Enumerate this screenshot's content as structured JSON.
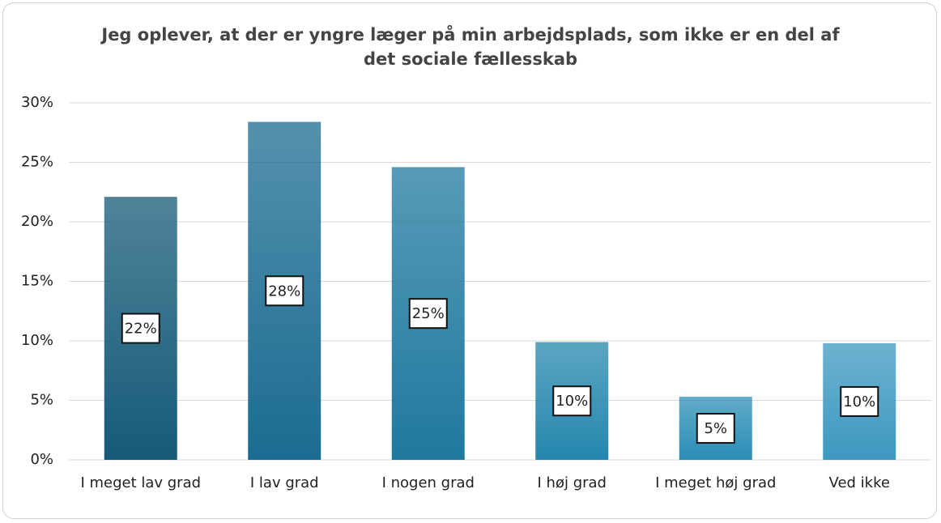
{
  "chart_data": {
    "type": "bar",
    "title": "Jeg oplever, at der er yngre læger på min arbejdsplads, som ikke er en del af det sociale fællesskab",
    "categories": [
      "I meget lav grad",
      "I lav grad",
      "I nogen grad",
      "I høj grad",
      "I meget høj grad",
      "Ved ikke"
    ],
    "values": [
      22.1,
      28.4,
      24.6,
      9.9,
      5.3,
      9.8
    ],
    "value_labels": [
      "22%",
      "28%",
      "25%",
      "10%",
      "5%",
      "10%"
    ],
    "colors": [
      "#155a78",
      "#1b6c91",
      "#1f799f",
      "#2587ad",
      "#2b8eb6",
      "#3d98c0"
    ],
    "ylim": [
      0,
      30
    ],
    "yticks": [
      {
        "value": 0,
        "label": "0%"
      },
      {
        "value": 5,
        "label": "5%"
      },
      {
        "value": 10,
        "label": "10%"
      },
      {
        "value": 15,
        "label": "15%"
      },
      {
        "value": 20,
        "label": "20%"
      },
      {
        "value": 25,
        "label": "25%"
      },
      {
        "value": 30,
        "label": "30%"
      }
    ],
    "grid": true
  }
}
